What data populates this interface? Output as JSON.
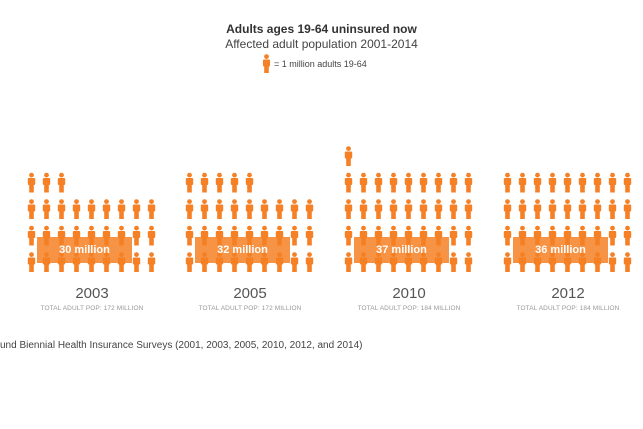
{
  "header": {
    "title": "Adults ages 19-64 uninsured now",
    "subtitle": "Affected adult population 2001-2014",
    "legend": "= 1 million adults 19-64"
  },
  "colors": {
    "icon": "#f58025",
    "box": "#f58025"
  },
  "chart_data": {
    "type": "pictograph",
    "unit": "1 million adults 19-64",
    "panels": [
      {
        "year": "2003",
        "value": 30,
        "label": "30 million",
        "total": "TOTAL ADULT POP: 172 MILLION"
      },
      {
        "year": "2005",
        "value": 32,
        "label": "32 million",
        "total": "TOTAL ADULT POP: 172 MILLION"
      },
      {
        "year": "2010",
        "value": 37,
        "label": "37 million",
        "total": "TOTAL ADULT POP: 184 MILLION"
      },
      {
        "year": "2012",
        "value": 36,
        "label": "36 million",
        "total": "TOTAL ADULT POP: 184 MILLION"
      }
    ]
  },
  "source": "und Biennial Health Insurance Surveys (2001, 2003, 2005, 2010, 2012, and 2014)"
}
